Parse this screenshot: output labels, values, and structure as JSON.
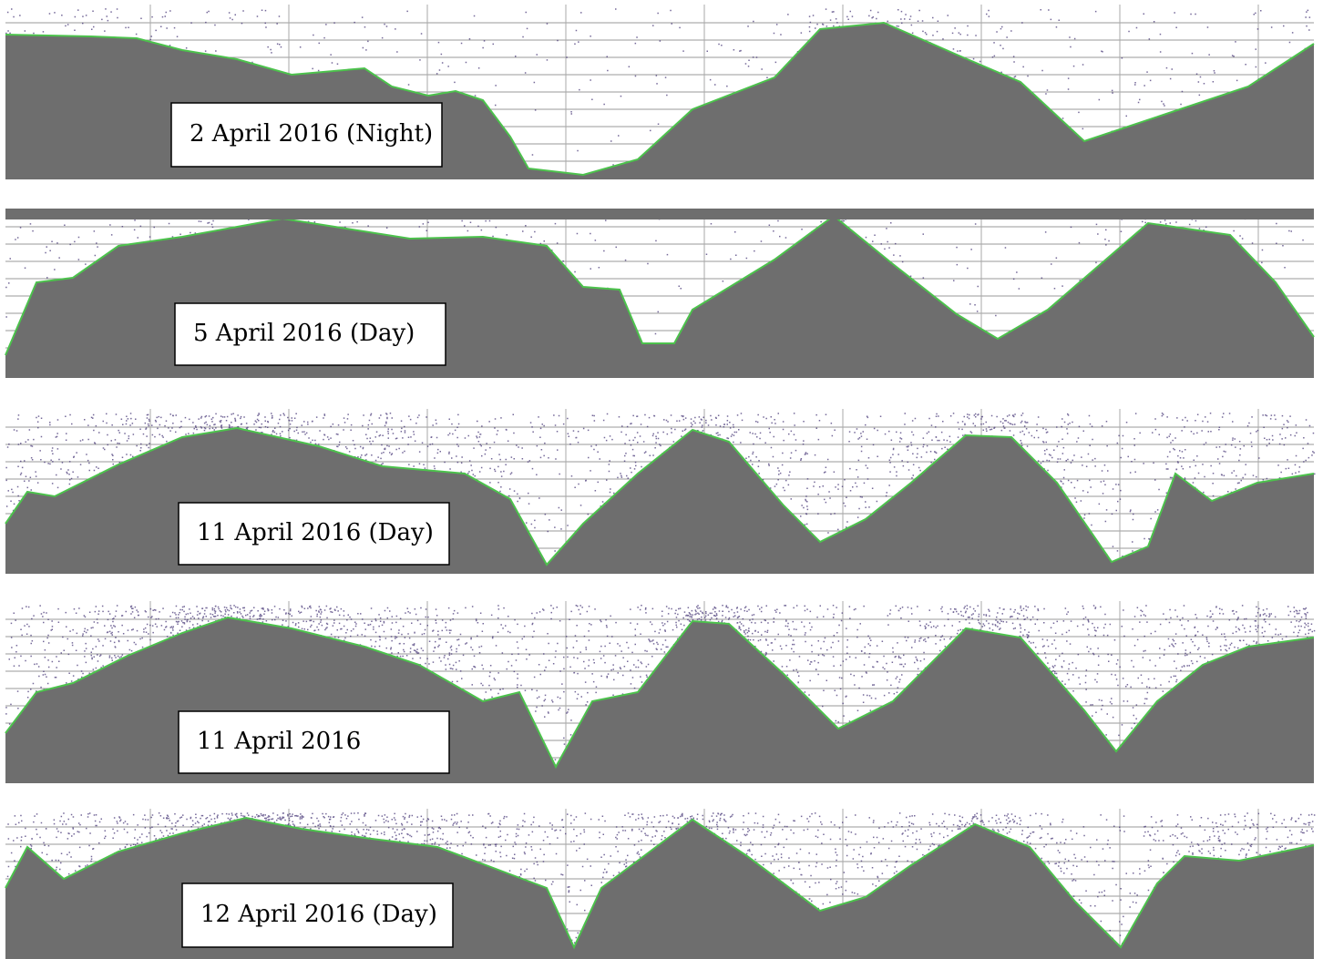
{
  "panels": [
    {
      "label": "2 April 2016 (Night)"
    },
    {
      "label": "5 April 2016 (Day)"
    },
    {
      "label": "11 April 2016 (Day)"
    },
    {
      "label": "11 April 2016"
    },
    {
      "label": "12 April 2016 (Day)"
    }
  ]
}
